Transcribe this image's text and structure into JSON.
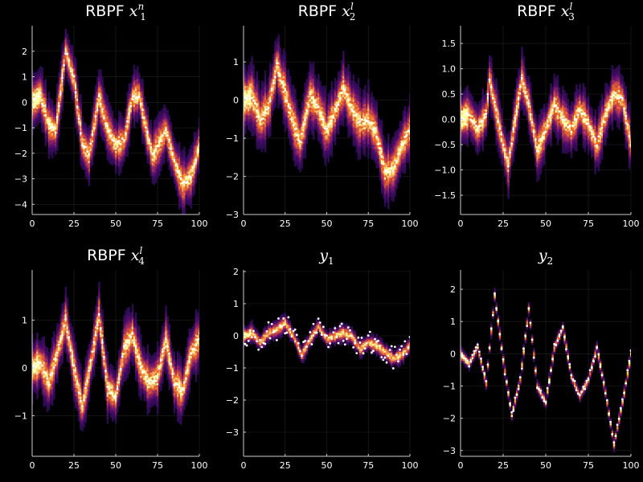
{
  "figure": {
    "description_free": true
  },
  "colors": {
    "background": "#000000",
    "axis": "#cccccc",
    "grid": "#222222",
    "point": "#ffffff",
    "heat_low": "#1b0c41",
    "heat_mid1": "#4b0c6b",
    "heat_mid2": "#a52c60",
    "heat_mid3": "#ed6925",
    "heat_high": "#fcffa4"
  },
  "chart_data": [
    {
      "type": "heatmap",
      "title_text": "RBPF",
      "title_symbol": "x",
      "title_sup": "n",
      "title_sub": "1",
      "xlim": [
        0,
        100
      ],
      "ylim": [
        -4.4,
        3.0
      ],
      "xticks": [
        0,
        25,
        50,
        75,
        100
      ],
      "xtick_labels": [
        "0",
        "25",
        "50",
        "75",
        "100"
      ],
      "yticks": [
        -4,
        -3,
        -2,
        -1,
        0,
        1,
        2
      ],
      "ytick_labels": [
        "−4",
        "−3",
        "−2",
        "−1",
        "0",
        "1",
        "2"
      ],
      "trace_knots": [
        [
          0,
          0
        ],
        [
          5,
          0.3
        ],
        [
          10,
          -0.9
        ],
        [
          14,
          -1.1
        ],
        [
          20,
          2.0
        ],
        [
          25,
          0.9
        ],
        [
          30,
          -1.6
        ],
        [
          34,
          -2.1
        ],
        [
          40,
          0.2
        ],
        [
          45,
          -1.0
        ],
        [
          50,
          -1.7
        ],
        [
          55,
          -1.5
        ],
        [
          60,
          0.2
        ],
        [
          64,
          0.3
        ],
        [
          68,
          -1.0
        ],
        [
          72,
          -2.1
        ],
        [
          76,
          -1.6
        ],
        [
          80,
          -1.1
        ],
        [
          85,
          -2.3
        ],
        [
          90,
          -3.2
        ],
        [
          95,
          -2.9
        ],
        [
          100,
          -1.7
        ]
      ],
      "spread": 0.45,
      "noise": 0.12
    },
    {
      "type": "heatmap",
      "title_text": "RBPF",
      "title_symbol": "x",
      "title_sup": "l",
      "title_sub": "2",
      "xlim": [
        0,
        100
      ],
      "ylim": [
        -3.0,
        1.95
      ],
      "xticks": [
        0,
        25,
        50,
        75,
        100
      ],
      "xtick_labels": [
        "0",
        "25",
        "50",
        "75",
        "100"
      ],
      "yticks": [
        -3,
        -2,
        -1,
        0,
        1
      ],
      "ytick_labels": [
        "−3",
        "−2",
        "−1",
        "0",
        "1"
      ],
      "trace_knots": [
        [
          0,
          0
        ],
        [
          5,
          0.1
        ],
        [
          10,
          -0.5
        ],
        [
          15,
          -0.2
        ],
        [
          20,
          0.9
        ],
        [
          25,
          0.2
        ],
        [
          30,
          -0.6
        ],
        [
          34,
          -1.1
        ],
        [
          40,
          0.1
        ],
        [
          45,
          -0.2
        ],
        [
          50,
          -0.8
        ],
        [
          55,
          -0.3
        ],
        [
          60,
          0.3
        ],
        [
          65,
          -0.2
        ],
        [
          70,
          -0.6
        ],
        [
          75,
          -0.5
        ],
        [
          80,
          -0.9
        ],
        [
          85,
          -1.9
        ],
        [
          90,
          -1.8
        ],
        [
          95,
          -1.2
        ],
        [
          100,
          -0.8
        ]
      ],
      "spread": 0.35,
      "noise": 0.08
    },
    {
      "type": "heatmap",
      "title_text": "RBPF",
      "title_symbol": "x",
      "title_sup": "l",
      "title_sub": "3",
      "xlim": [
        0,
        100
      ],
      "ylim": [
        -1.88,
        1.85
      ],
      "xticks": [
        0,
        25,
        50,
        75,
        100
      ],
      "xtick_labels": [
        "0",
        "25",
        "50",
        "75",
        "100"
      ],
      "yticks": [
        -1.5,
        -1.0,
        -0.5,
        0.0,
        0.5,
        1.0,
        1.5
      ],
      "ytick_labels": [
        "−1.5",
        "−1.0",
        "−0.5",
        "0.0",
        "0.5",
        "1.0",
        "1.5"
      ],
      "trace_knots": [
        [
          0,
          0
        ],
        [
          5,
          0.1
        ],
        [
          10,
          -0.2
        ],
        [
          15,
          0.1
        ],
        [
          17,
          0.8
        ],
        [
          20,
          0.3
        ],
        [
          25,
          -0.5
        ],
        [
          28,
          -0.9
        ],
        [
          32,
          0.0
        ],
        [
          36,
          0.8
        ],
        [
          40,
          0.3
        ],
        [
          45,
          -0.6
        ],
        [
          50,
          -0.2
        ],
        [
          55,
          0.3
        ],
        [
          60,
          0.0
        ],
        [
          65,
          -0.2
        ],
        [
          70,
          0.2
        ],
        [
          75,
          -0.1
        ],
        [
          80,
          -0.5
        ],
        [
          85,
          0.1
        ],
        [
          90,
          0.5
        ],
        [
          95,
          0.4
        ],
        [
          100,
          -0.5
        ]
      ],
      "spread": 0.22,
      "noise": 0.05
    },
    {
      "type": "heatmap",
      "title_text": "RBPF",
      "title_symbol": "x",
      "title_sup": "l",
      "title_sub": "4",
      "xlim": [
        0,
        100
      ],
      "ylim": [
        -1.85,
        2.05
      ],
      "xticks": [
        0,
        25,
        50,
        75,
        100
      ],
      "xtick_labels": [
        "0",
        "25",
        "50",
        "75",
        "100"
      ],
      "yticks": [
        -1,
        0,
        1
      ],
      "ytick_labels": [
        "−1",
        "0",
        "1"
      ],
      "trace_knots": [
        [
          0,
          0
        ],
        [
          5,
          0.1
        ],
        [
          10,
          -0.3
        ],
        [
          15,
          0.3
        ],
        [
          20,
          1.0
        ],
        [
          25,
          0.0
        ],
        [
          30,
          -0.8
        ],
        [
          35,
          0.1
        ],
        [
          40,
          1.1
        ],
        [
          45,
          -0.4
        ],
        [
          50,
          -0.6
        ],
        [
          55,
          0.4
        ],
        [
          60,
          0.7
        ],
        [
          65,
          0.0
        ],
        [
          70,
          -0.3
        ],
        [
          75,
          -0.2
        ],
        [
          80,
          0.6
        ],
        [
          85,
          -0.3
        ],
        [
          90,
          -0.5
        ],
        [
          95,
          0.3
        ],
        [
          100,
          0.6
        ]
      ],
      "spread": 0.25,
      "noise": 0.06
    },
    {
      "type": "heatmap",
      "title_text": "",
      "title_symbol": "y",
      "title_sup": "",
      "title_sub": "1",
      "xlim": [
        0,
        100
      ],
      "ylim": [
        -3.75,
        2.05
      ],
      "xticks": [
        0,
        25,
        50,
        75,
        100
      ],
      "xtick_labels": [
        "0",
        "25",
        "50",
        "75",
        "100"
      ],
      "yticks": [
        -3,
        -2,
        -1,
        0,
        1,
        2
      ],
      "ytick_labels": [
        "−3",
        "−2",
        "−1",
        "0",
        "1",
        "2"
      ],
      "trace_knots": [
        [
          0,
          0
        ],
        [
          5,
          0.1
        ],
        [
          10,
          -0.2
        ],
        [
          15,
          0.1
        ],
        [
          20,
          0.2
        ],
        [
          25,
          0.4
        ],
        [
          30,
          0.0
        ],
        [
          35,
          -0.6
        ],
        [
          40,
          -0.1
        ],
        [
          45,
          0.3
        ],
        [
          50,
          -0.1
        ],
        [
          55,
          0.0
        ],
        [
          60,
          0.1
        ],
        [
          65,
          0.0
        ],
        [
          70,
          -0.4
        ],
        [
          75,
          -0.2
        ],
        [
          80,
          -0.3
        ],
        [
          85,
          -0.5
        ],
        [
          90,
          -0.7
        ],
        [
          95,
          -0.6
        ],
        [
          100,
          -0.3
        ]
      ],
      "spread": 0.12,
      "noise": 0.35
    },
    {
      "type": "heatmap",
      "title_text": "",
      "title_symbol": "y",
      "title_sup": "",
      "title_sub": "2",
      "xlim": [
        0,
        100
      ],
      "ylim": [
        -3.18,
        2.6
      ],
      "xticks": [
        0,
        25,
        50,
        75,
        100
      ],
      "xtick_labels": [
        "0",
        "25",
        "50",
        "75",
        "100"
      ],
      "yticks": [
        -3,
        -2,
        -1,
        0,
        1,
        2
      ],
      "ytick_labels": [
        "−3",
        "−2",
        "−1",
        "0",
        "1",
        "2"
      ],
      "trace_knots": [
        [
          0,
          0
        ],
        [
          5,
          -0.3
        ],
        [
          10,
          0.2
        ],
        [
          15,
          -0.9
        ],
        [
          20,
          1.8
        ],
        [
          25,
          -0.2
        ],
        [
          30,
          -1.9
        ],
        [
          35,
          -0.8
        ],
        [
          40,
          1.4
        ],
        [
          45,
          -1.0
        ],
        [
          50,
          -1.5
        ],
        [
          55,
          0.2
        ],
        [
          60,
          0.8
        ],
        [
          65,
          -0.7
        ],
        [
          70,
          -1.3
        ],
        [
          75,
          -0.8
        ],
        [
          80,
          0.2
        ],
        [
          85,
          -1.2
        ],
        [
          90,
          -2.8
        ],
        [
          95,
          -1.5
        ],
        [
          100,
          0.0
        ]
      ],
      "spread": 0.08,
      "noise": 0.1
    }
  ]
}
